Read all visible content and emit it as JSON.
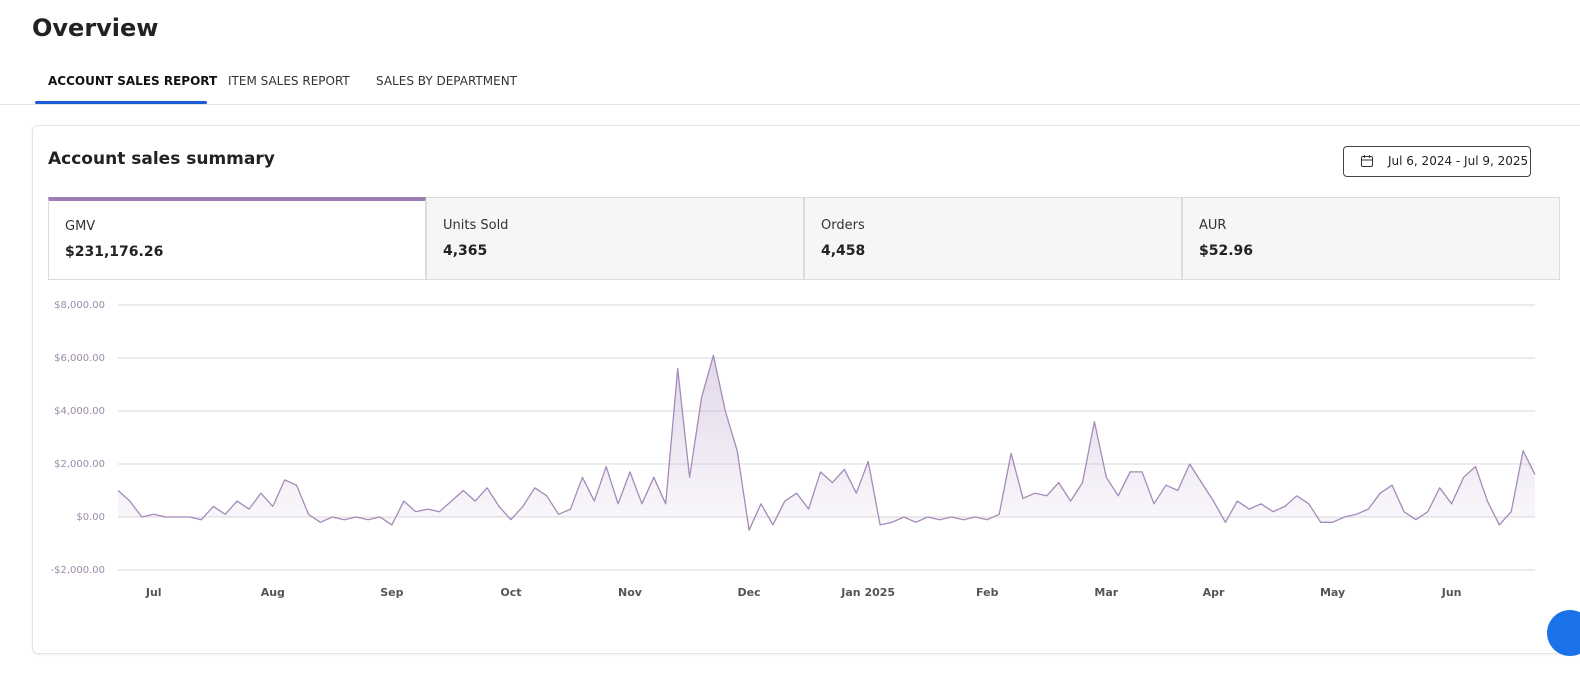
{
  "header": {
    "title": "Overview"
  },
  "tabs": [
    "ACCOUNT SALES REPORT",
    "ITEM SALES REPORT",
    "SALES BY DEPARTMENT"
  ],
  "card": {
    "title": "Account sales summary",
    "date_range": "Jul 6, 2024 - Jul 9, 2025"
  },
  "kpis": [
    {
      "label": "GMV",
      "value": "$231,176.26"
    },
    {
      "label": "Units Sold",
      "value": "4,365"
    },
    {
      "label": "Orders",
      "value": "4,458"
    },
    {
      "label": "AUR",
      "value": "$52.96"
    }
  ],
  "chart_data": {
    "type": "area",
    "color": "#a58bb8",
    "grid": true,
    "ylim": [
      -2000,
      8000
    ],
    "yticks": [
      {
        "value": -2000,
        "label": "-$2,000.00"
      },
      {
        "value": 0,
        "label": "$0.00"
      },
      {
        "value": 2000,
        "label": "$2,000.00"
      },
      {
        "value": 4000,
        "label": "$4,000.00"
      },
      {
        "value": 6000,
        "label": "$6,000.00"
      },
      {
        "value": 8000,
        "label": "$8,000.00"
      }
    ],
    "categories": [
      null,
      null,
      null,
      "Jul",
      null,
      null,
      null,
      null,
      null,
      null,
      null,
      null,
      null,
      "Aug",
      null,
      null,
      null,
      null,
      null,
      null,
      null,
      null,
      null,
      "Sep",
      null,
      null,
      null,
      null,
      null,
      null,
      null,
      null,
      null,
      "Oct",
      null,
      null,
      null,
      null,
      null,
      null,
      null,
      null,
      null,
      "Nov",
      null,
      null,
      null,
      null,
      null,
      null,
      null,
      null,
      null,
      "Dec",
      null,
      null,
      null,
      null,
      null,
      null,
      null,
      null,
      null,
      "Jan 2025",
      null,
      null,
      null,
      null,
      null,
      null,
      null,
      null,
      null,
      "Feb",
      null,
      null,
      null,
      null,
      null,
      null,
      null,
      null,
      null,
      "Mar",
      null,
      null,
      null,
      null,
      null,
      null,
      null,
      null,
      "Apr",
      null,
      null,
      null,
      null,
      null,
      null,
      null,
      null,
      null,
      "May",
      null,
      null,
      null,
      null,
      null,
      null,
      null,
      null,
      null,
      "Jun",
      null,
      null,
      null,
      null,
      null,
      null,
      null
    ],
    "values": [
      1000,
      600,
      0,
      100,
      0,
      0,
      0,
      -100,
      400,
      100,
      600,
      300,
      900,
      400,
      1400,
      1200,
      100,
      -200,
      0,
      -100,
      0,
      -100,
      0,
      -300,
      600,
      200,
      300,
      200,
      600,
      1000,
      600,
      1100,
      400,
      -100,
      400,
      1100,
      800,
      100,
      300,
      1500,
      600,
      1900,
      500,
      1700,
      500,
      1500,
      500,
      5600,
      1500,
      4500,
      6100,
      4000,
      2500,
      -500,
      500,
      -300,
      600,
      900,
      300,
      1700,
      1300,
      1800,
      900,
      2100,
      -300,
      -200,
      0,
      -200,
      0,
      -100,
      0,
      -100,
      0,
      -100,
      100,
      2400,
      700,
      900,
      800,
      1300,
      600,
      1300,
      3600,
      1500,
      800,
      1700,
      1700,
      500,
      1200,
      1000,
      2000,
      1300,
      600,
      -200,
      600,
      300,
      500,
      200,
      400,
      800,
      500,
      -200,
      -200,
      0,
      100,
      300,
      900,
      1200,
      200,
      -100,
      200,
      1100,
      500,
      1500,
      1900,
      600,
      -300,
      200,
      2500,
      1600
    ]
  }
}
